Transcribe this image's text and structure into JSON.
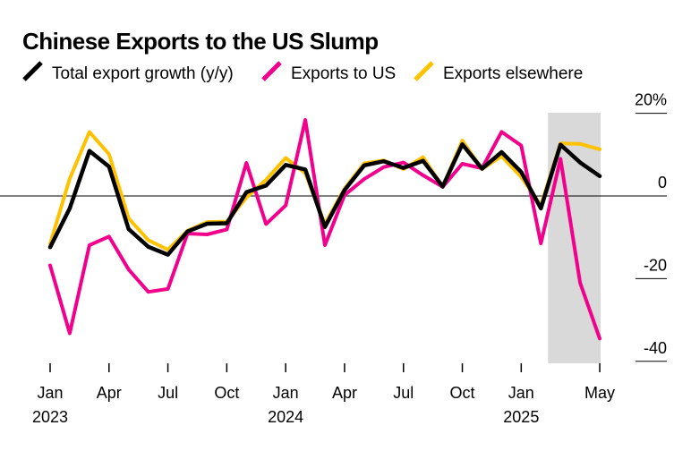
{
  "chart_data": {
    "type": "line",
    "title": "Chinese Exports to the US Slump",
    "x_ticks": [
      {
        "index": 0,
        "label": "Jan",
        "year": "2023"
      },
      {
        "index": 3,
        "label": "Apr",
        "year": ""
      },
      {
        "index": 6,
        "label": "Jul",
        "year": ""
      },
      {
        "index": 9,
        "label": "Oct",
        "year": ""
      },
      {
        "index": 12,
        "label": "Jan",
        "year": "2024"
      },
      {
        "index": 15,
        "label": "Apr",
        "year": ""
      },
      {
        "index": 18,
        "label": "Jul",
        "year": ""
      },
      {
        "index": 21,
        "label": "Oct",
        "year": ""
      },
      {
        "index": 24,
        "label": "Jan",
        "year": "2025"
      },
      {
        "index": 28,
        "label": "May",
        "year": ""
      }
    ],
    "y_ticks": [
      {
        "value": 20,
        "label": "20%"
      },
      {
        "value": 0,
        "label": "0"
      },
      {
        "value": -20,
        "label": "-20"
      },
      {
        "value": -40,
        "label": "-40"
      }
    ],
    "ylim": [
      -40,
      20
    ],
    "highlight_range": [
      26,
      28
    ],
    "x": [
      "Jan 2023",
      "Feb 2023",
      "Mar 2023",
      "Apr 2023",
      "May 2023",
      "Jun 2023",
      "Jul 2023",
      "Aug 2023",
      "Sep 2023",
      "Oct 2023",
      "Nov 2023",
      "Dec 2023",
      "Jan 2024",
      "Feb 2024",
      "Mar 2024",
      "Apr 2024",
      "May 2024",
      "Jun 2024",
      "Jul 2024",
      "Aug 2024",
      "Sep 2024",
      "Oct 2024",
      "Nov 2024",
      "Dec 2024",
      "Jan 2025",
      "Feb 2025",
      "Mar 2025",
      "Apr 2025",
      "May 2025"
    ],
    "series": [
      {
        "name": "Total export growth (y/y)",
        "color": "#000000",
        "values": [
          -12.4,
          -3,
          10.9,
          7.1,
          -8,
          -12.3,
          -14.2,
          -8.6,
          -6.7,
          -6.6,
          0.9,
          2.5,
          7.5,
          6.4,
          -7.5,
          1.4,
          7.4,
          8.4,
          6.8,
          8.5,
          2.3,
          12.5,
          6.6,
          10.6,
          5.8,
          -3,
          12.4,
          8.1,
          4.8
        ]
      },
      {
        "name": "Exports to US",
        "color": "#f2008c",
        "values": [
          -16.8,
          -33.2,
          -11.9,
          -9.8,
          -17.8,
          -23.2,
          -22.5,
          -9.1,
          -9.3,
          -8.1,
          8,
          -6.8,
          -2.3,
          18.4,
          -11.9,
          0.2,
          4.1,
          7,
          8.1,
          5,
          2.2,
          7.8,
          6.7,
          15.5,
          12.2,
          -11.5,
          9,
          -21,
          -34.5
        ]
      },
      {
        "name": "Exports elsewhere",
        "color": "#ffc200",
        "values": [
          -11.6,
          4.2,
          15.5,
          10.1,
          -5.4,
          -10.7,
          -13,
          -8.4,
          -6.3,
          -6.2,
          -0.4,
          3.9,
          9.2,
          5.5,
          -6.8,
          1.8,
          7.9,
          8.6,
          6.5,
          9.4,
          2.2,
          13.4,
          6.5,
          9.6,
          4.6,
          -2.3,
          12.7,
          12.6,
          11.3
        ]
      }
    ]
  }
}
